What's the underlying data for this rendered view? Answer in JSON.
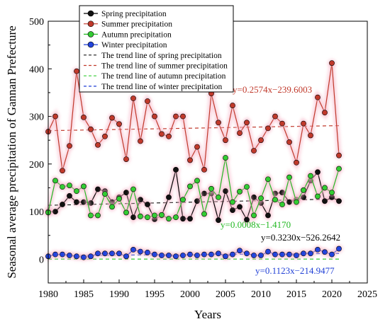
{
  "chart_data": {
    "type": "line",
    "title": "",
    "xlabel": "Years",
    "ylabel": "Seasonal average precipitation of Gannan Prefecture",
    "xlim": [
      1980,
      2025
    ],
    "ylim": [
      -50,
      500
    ],
    "xticks": [
      1980,
      1985,
      1990,
      1995,
      2000,
      2005,
      2010,
      2015,
      2020,
      2025
    ],
    "yticks": [
      0,
      100,
      200,
      300,
      400,
      500
    ],
    "x": [
      1980,
      1981,
      1982,
      1983,
      1984,
      1985,
      1986,
      1987,
      1988,
      1989,
      1990,
      1991,
      1992,
      1993,
      1994,
      1995,
      1996,
      1997,
      1998,
      1999,
      2000,
      2001,
      2002,
      2003,
      2004,
      2005,
      2006,
      2007,
      2008,
      2009,
      2010,
      2011,
      2012,
      2013,
      2014,
      2015,
      2016,
      2017,
      2018,
      2019,
      2020,
      2021
    ],
    "legend_position": "top-left",
    "series": [
      {
        "name": "Spring precipitation",
        "color": "#000000",
        "fill": "#111111",
        "values": [
          100,
          100,
          115,
          133,
          120,
          120,
          118,
          147,
          143,
          120,
          130,
          140,
          88,
          125,
          115,
          84,
          92,
          130,
          188,
          85,
          85,
          122,
          138,
          138,
          82,
          143,
          103,
          110,
          83,
          130,
          118,
          92,
          138,
          140,
          120,
          125,
          130,
          165,
          183,
          122,
          130,
          122
        ]
      },
      {
        "name": "Summer precipitation",
        "color": "#c0392b",
        "fill": "#c0392b",
        "values": [
          268,
          300,
          186,
          238,
          395,
          298,
          273,
          240,
          258,
          297,
          284,
          210,
          338,
          248,
          332,
          300,
          263,
          258,
          300,
          300,
          208,
          236,
          188,
          348,
          287,
          250,
          323,
          265,
          287,
          228,
          250,
          275,
          300,
          285,
          246,
          203,
          285,
          260,
          340,
          308,
          412,
          218
        ]
      },
      {
        "name": "Autumn precipitation",
        "color": "#22b822",
        "fill": "#33cc33",
        "values": [
          98,
          165,
          152,
          155,
          143,
          153,
          92,
          92,
          137,
          110,
          127,
          98,
          147,
          90,
          88,
          92,
          93,
          85,
          88,
          125,
          153,
          165,
          95,
          148,
          130,
          213,
          120,
          142,
          152,
          92,
          128,
          168,
          125,
          115,
          172,
          120,
          145,
          175,
          132,
          150,
          140,
          190
        ]
      },
      {
        "name": "Winter precipitation",
        "color": "#1f3fd6",
        "fill": "#2244dd",
        "values": [
          6,
          10,
          10,
          8,
          6,
          4,
          6,
          12,
          12,
          12,
          12,
          6,
          20,
          16,
          14,
          10,
          8,
          8,
          6,
          8,
          10,
          8,
          10,
          10,
          12,
          6,
          10,
          18,
          12,
          8,
          8,
          16,
          10,
          10,
          10,
          8,
          12,
          12,
          20,
          15,
          10,
          22
        ]
      }
    ],
    "trend_lines": [
      {
        "name": "The trend line of spring precipitation",
        "color": "#1a1a1a",
        "dash": "5,4",
        "slope": 0.323,
        "intercept": -526.2642,
        "label": "y=0.3230x−526.2642",
        "label_color": "#000000"
      },
      {
        "name": "The trend line of summer precipitation",
        "color": "#c0392b",
        "dash": "5,4",
        "slope": 0.2574,
        "intercept": -239.6003,
        "label": "y=0.2574x−239.6003",
        "label_color": "#c0392b"
      },
      {
        "name": "The trend line of autumn precipitation",
        "color": "#33cc33",
        "dash": "5,4",
        "slope": 0.0008,
        "intercept": -1.417,
        "label": "y=0.0008x−1.4170",
        "label_color": "#22b822"
      },
      {
        "name": "The trend line of winter precipitation",
        "color": "#1f3fd6",
        "dash": "5,4",
        "slope": 0.1123,
        "intercept": -214.9477,
        "label": "y=0.1123x−214.9477",
        "label_color": "#1f3fd6"
      }
    ]
  }
}
